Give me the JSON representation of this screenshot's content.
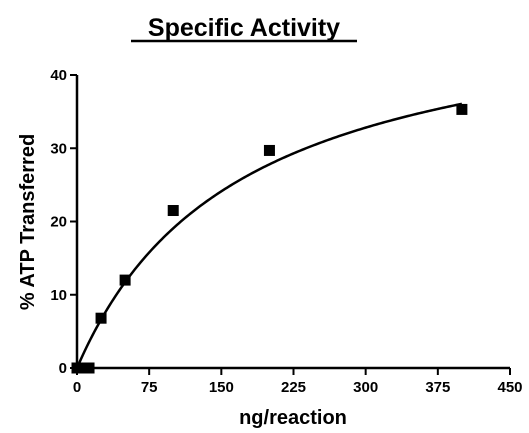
{
  "chart_data": {
    "type": "scatter",
    "title": "Specific Activity",
    "xlabel": "ng/reaction",
    "ylabel": "% ATP Transferred",
    "xlim": [
      0,
      450
    ],
    "ylim": [
      0,
      40
    ],
    "xticks": [
      0,
      75,
      150,
      225,
      300,
      375,
      450
    ],
    "yticks": [
      0,
      10,
      20,
      30,
      40
    ],
    "grid": false,
    "legend": "none",
    "series": [
      {
        "marker": "square",
        "color": "#000000",
        "points": [
          {
            "x": 0,
            "y": 0
          },
          {
            "x": 6.25,
            "y": 0
          },
          {
            "x": 12.5,
            "y": 0
          },
          {
            "x": 25,
            "y": 6.8
          },
          {
            "x": 50,
            "y": 12
          },
          {
            "x": 100,
            "y": 21.5
          },
          {
            "x": 200,
            "y": 29.7
          },
          {
            "x": 400,
            "y": 35.3
          }
        ]
      }
    ],
    "fit": {
      "type": "hyperbolic",
      "vmax": 51.3,
      "km": 169,
      "color": "#000000"
    }
  }
}
